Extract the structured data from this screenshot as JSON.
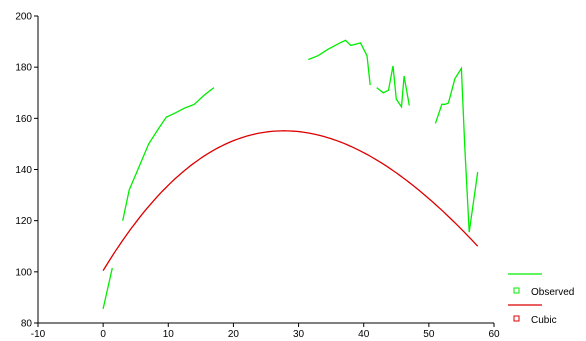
{
  "chart_data": {
    "type": "line",
    "title": "",
    "xlabel": "",
    "ylabel": "",
    "xlim": [
      -10,
      60
    ],
    "ylim": [
      80,
      200
    ],
    "x_ticks": [
      -10,
      0,
      10,
      20,
      30,
      40,
      50,
      60
    ],
    "y_ticks": [
      80,
      100,
      120,
      140,
      160,
      180,
      200
    ],
    "x_tick_labels": [
      "-10",
      "0",
      "10",
      "20",
      "30",
      "40",
      "50",
      "60"
    ],
    "y_tick_labels": [
      "80",
      "100",
      "120",
      "140",
      "160",
      "180",
      "200"
    ],
    "grid": false,
    "legend_position": "bottom-right",
    "series": [
      {
        "name": "Observed",
        "color": "#00ee00",
        "marker": "square-open",
        "segments": [
          {
            "x": [
              0,
              1.4
            ],
            "y": [
              85.5,
              101.5
            ]
          },
          {
            "x": [
              3,
              4,
              5.5,
              7,
              8.5,
              9.7,
              11,
              12.5,
              14,
              15.5,
              17
            ],
            "y": [
              120,
              132,
              141,
              150,
              156,
              160.5,
              162,
              164,
              165.5,
              169,
              172
            ]
          },
          {
            "x": [
              31.5,
              33,
              34.5,
              36,
              37.2,
              38,
              38.8,
              39.5,
              40.5,
              41
            ],
            "y": [
              183,
              184.5,
              187,
              189,
              190.5,
              188.5,
              189,
              189.5,
              184.5,
              173
            ]
          },
          {
            "x": [
              42,
              43,
              43.8,
              44.5,
              45,
              45.8,
              46.2,
              47
            ],
            "y": [
              172,
              170,
              171,
              180.5,
              167.5,
              164.5,
              176.5,
              165
            ]
          },
          {
            "x": [
              51,
              52,
              52.5,
              53,
              54,
              55,
              55.5,
              56.2,
              57.5
            ],
            "y": [
              158,
              165.5,
              165.5,
              166,
              175.5,
              179.5,
              149.5,
              115.5,
              139
            ]
          }
        ]
      },
      {
        "name": "Cubic",
        "color": "#dd0000",
        "marker": "square-open",
        "coefficients": [
          100.5,
          4.2,
          -0.09,
          0.000345
        ],
        "x_range": [
          0,
          57.5
        ]
      }
    ]
  },
  "legend": {
    "observed_label": "Observed",
    "cubic_label": "Cubic",
    "observed_color": "#00ee00",
    "cubic_color": "#dd0000"
  }
}
